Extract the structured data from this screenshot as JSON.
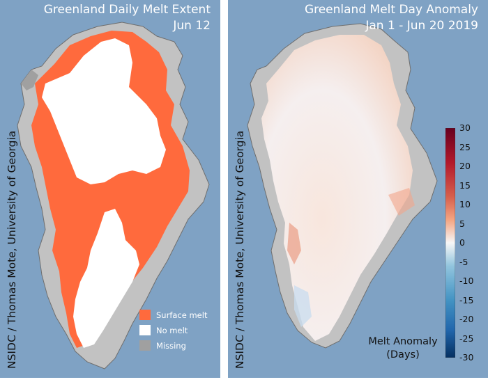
{
  "left_panel": {
    "title": "Greenland Daily Melt Extent",
    "date": "Jun 12",
    "credit": "NSIDC / Thomas Mote, University of Georgia",
    "legend": [
      {
        "label": "Surface melt",
        "color": "#ff6a3d"
      },
      {
        "label": "No melt",
        "color": "#ffffff"
      },
      {
        "label": "Missing",
        "color": "#a0a0a0"
      }
    ]
  },
  "right_panel": {
    "title": "Greenland Melt Day Anomaly",
    "date": "Jan 1 - Jun 20 2019",
    "credit": "NSIDC / Thomas Mote, University of Georgia",
    "colorbar": {
      "ticks": [
        "30",
        "25",
        "20",
        "15",
        "10",
        "5",
        "0",
        "-5",
        "-10",
        "-15",
        "-20",
        "-25",
        "-30"
      ],
      "label_line1": "Melt Anomaly",
      "label_line2": "(Days)"
    }
  },
  "colors": {
    "ocean": "#7fa2c4",
    "land": "#c2c2c2",
    "melt": "#ff6a3d",
    "no_melt": "#ffffff"
  }
}
